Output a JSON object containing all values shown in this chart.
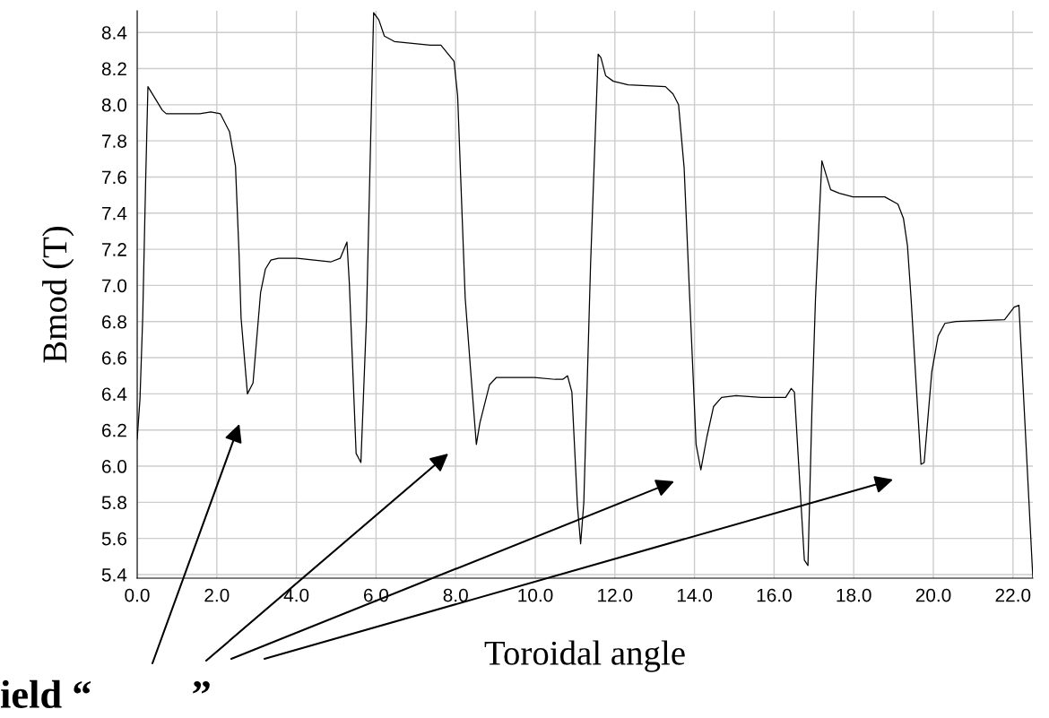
{
  "chart_data": {
    "type": "line",
    "xlabel": "Toroidal angle",
    "ylabel": "Bmod (T)",
    "x": [
      0,
      0.07,
      0.14,
      0.21,
      0.27,
      0.63,
      0.73,
      1.57,
      1.85,
      2.09,
      2.32,
      2.47,
      2.56,
      2.61,
      2.77,
      2.91,
      3.1,
      3.22,
      3.36,
      3.55,
      4.02,
      4.86,
      5.1,
      5.27,
      5.33,
      5.5,
      5.62,
      5.76,
      5.94,
      6.07,
      6.21,
      6.46,
      7.36,
      7.63,
      7.96,
      8.05,
      8.24,
      8.38,
      8.52,
      8.61,
      8.85,
      9.02,
      9.98,
      10.5,
      10.69,
      10.81,
      10.92,
      11.06,
      11.14,
      11.22,
      11.39,
      11.58,
      11.65,
      11.77,
      11.96,
      12.33,
      13.27,
      13.46,
      13.6,
      13.74,
      13.88,
      14.04,
      14.16,
      14.31,
      14.48,
      14.68,
      15.04,
      15.68,
      16.29,
      16.43,
      16.51,
      16.62,
      16.76,
      16.85,
      16.95,
      17.04,
      17.2,
      17.42,
      17.64,
      17.98,
      18.78,
      19.11,
      19.25,
      19.35,
      19.44,
      19.58,
      19.69,
      19.77,
      19.96,
      20.12,
      20.29,
      20.57,
      21.79,
      22.03,
      22.15,
      22.5
    ],
    "series": [
      {
        "color": "#000000",
        "values": [
          6.15,
          6.37,
          6.83,
          7.55,
          8.1,
          7.97,
          7.95,
          7.95,
          7.96,
          7.95,
          7.85,
          7.66,
          7.17,
          6.82,
          6.4,
          6.46,
          6.96,
          7.09,
          7.14,
          7.15,
          7.15,
          7.13,
          7.15,
          7.24,
          7.01,
          6.07,
          6.02,
          6.82,
          8.51,
          8.47,
          8.38,
          8.35,
          8.33,
          8.33,
          8.24,
          8.05,
          6.93,
          6.52,
          6.12,
          6.24,
          6.45,
          6.49,
          6.49,
          6.48,
          6.48,
          6.5,
          6.41,
          5.78,
          5.57,
          5.8,
          7.12,
          8.28,
          8.26,
          8.16,
          8.13,
          8.11,
          8.1,
          8.06,
          8.0,
          7.65,
          6.93,
          6.12,
          5.98,
          6.16,
          6.33,
          6.38,
          6.39,
          6.38,
          6.38,
          6.43,
          6.41,
          6.0,
          5.48,
          5.45,
          6.31,
          6.93,
          7.69,
          7.53,
          7.51,
          7.49,
          7.49,
          7.45,
          7.37,
          7.22,
          6.93,
          6.41,
          6.01,
          6.02,
          6.52,
          6.72,
          6.79,
          6.8,
          6.81,
          6.88,
          6.89,
          5.38
        ]
      }
    ],
    "xlim": [
      0,
      22.5
    ],
    "ylim": [
      5.38,
      8.52
    ],
    "xticks": [
      {
        "value": 0,
        "label": "0.0"
      },
      {
        "value": 2,
        "label": "2.0"
      },
      {
        "value": 4,
        "label": "4.0"
      },
      {
        "value": 6,
        "label": "6.0"
      },
      {
        "value": 8,
        "label": "8.0"
      },
      {
        "value": 10,
        "label": "10.0"
      },
      {
        "value": 12,
        "label": "12.0"
      },
      {
        "value": 14,
        "label": "14.0"
      },
      {
        "value": 16,
        "label": "16.0"
      },
      {
        "value": 18,
        "label": "18.0"
      },
      {
        "value": 20,
        "label": "20.0"
      },
      {
        "value": 22,
        "label": "22.0"
      }
    ],
    "yticks": [
      5.4,
      5.6,
      5.8,
      {
        "value": 6,
        "label": "6.0"
      },
      6.2,
      6.4,
      6.6,
      6.8,
      {
        "value": 7,
        "label": "7.0"
      },
      7.2,
      7.4,
      7.6,
      7.8,
      {
        "value": 8,
        "label": "8.0"
      },
      8.2,
      8.4
    ],
    "grid": true,
    "marker": "none",
    "line_style": "solid",
    "annotations": [
      "ield “          ”"
    ]
  }
}
